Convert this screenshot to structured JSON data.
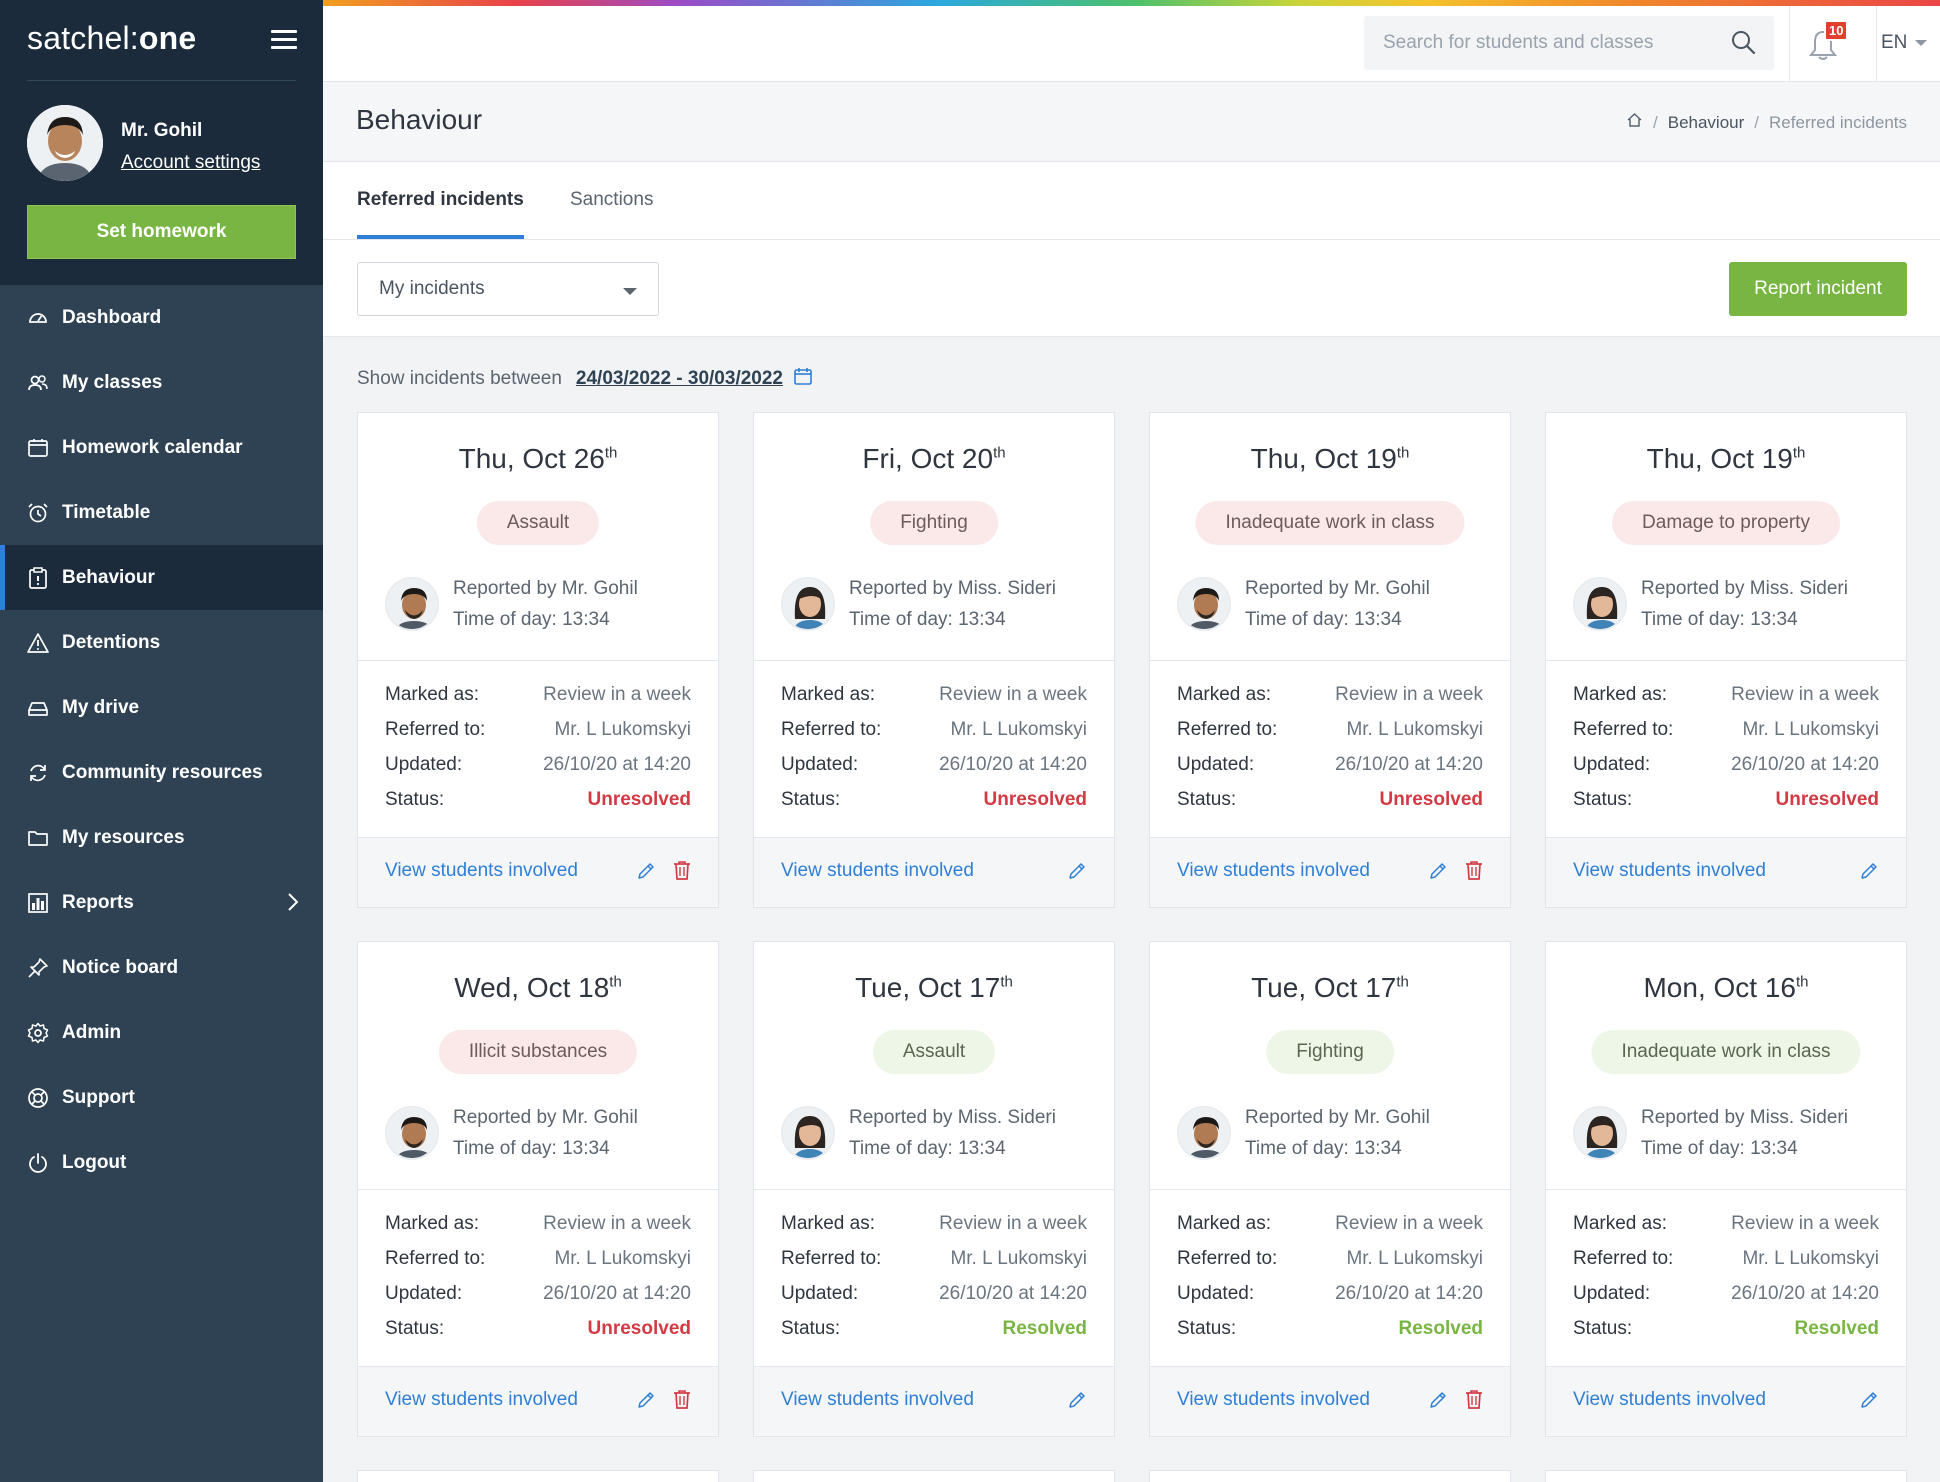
{
  "sidebar": {
    "logo_light": "satchel",
    "logo_sep": ":",
    "logo_bold": "one",
    "teacher_name": "Mr. Gohil",
    "account_settings": "Account settings",
    "set_homework": "Set homework",
    "nav": [
      {
        "label": "Dashboard",
        "icon": "dashboard-icon"
      },
      {
        "label": "My classes",
        "icon": "people-icon"
      },
      {
        "label": "Homework calendar",
        "icon": "calendar-icon"
      },
      {
        "label": "Timetable",
        "icon": "alarm-clock-icon"
      },
      {
        "label": "Behaviour",
        "icon": "clipboard-icon",
        "active": true
      },
      {
        "label": "Detentions",
        "icon": "warning-icon"
      },
      {
        "label": "My drive",
        "icon": "drive-icon"
      },
      {
        "label": "Community resources",
        "icon": "sync-icon"
      },
      {
        "label": "My resources",
        "icon": "folder-icon"
      },
      {
        "label": "Reports",
        "icon": "bar-chart-icon"
      },
      {
        "label": "Notice board",
        "icon": "pin-icon"
      },
      {
        "label": "Admin",
        "icon": "gear-icon"
      },
      {
        "label": "Support",
        "icon": "lifebuoy-icon"
      },
      {
        "label": "Logout",
        "icon": "power-icon"
      }
    ]
  },
  "topbar": {
    "search_placeholder": "Search for students and classes",
    "notification_count": "10",
    "language": "EN"
  },
  "page": {
    "title": "Behaviour",
    "breadcrumb": [
      "Behaviour",
      "Referred incidents"
    ]
  },
  "tabs": [
    "Referred incidents",
    "Sanctions"
  ],
  "filter": {
    "selected": "My incidents",
    "report_button": "Report incident",
    "range_label": "Show incidents between",
    "range_value": "24/03/2022 - 30/03/2022"
  },
  "labels": {
    "marked_as": "Marked as:",
    "referred_to": "Referred to:",
    "updated": "Updated:",
    "status": "Status:",
    "view_students": "View students involved"
  },
  "colors": {
    "accent_green": "#79b543",
    "accent_blue": "#2f7fd6",
    "unresolved_red": "#d33a44",
    "sidebar_dark": "#1b2b3c",
    "sidebar": "#2f4254"
  },
  "incidents": [
    {
      "date": "Thu, Oct 26",
      "suffix": "th",
      "type": "Assault",
      "tone": "red",
      "reporter": "Reported by Mr. Gohil",
      "time": "Time of day: 13:34",
      "avatar": "male",
      "marked": "Review in a week",
      "referred": "Mr. L Lukomskyi",
      "updated": "26/10/20 at 14:20",
      "status": "Unresolved",
      "deletable": true
    },
    {
      "date": "Fri, Oct 20",
      "suffix": "th",
      "type": "Fighting",
      "tone": "red",
      "reporter": "Reported by Miss. Sideri",
      "time": "Time of day: 13:34",
      "avatar": "female",
      "marked": "Review in a week",
      "referred": "Mr. L Lukomskyi",
      "updated": "26/10/20 at 14:20",
      "status": "Unresolved",
      "deletable": false
    },
    {
      "date": "Thu, Oct 19",
      "suffix": "th",
      "type": "Inadequate work in class",
      "tone": "red",
      "reporter": "Reported by Mr. Gohil",
      "time": "Time of day: 13:34",
      "avatar": "male",
      "marked": "Review in a week",
      "referred": "Mr. L Lukomskyi",
      "updated": "26/10/20 at 14:20",
      "status": "Unresolved",
      "deletable": true
    },
    {
      "date": "Thu, Oct 19",
      "suffix": "th",
      "type": "Damage to property",
      "tone": "red",
      "reporter": "Reported by Miss. Sideri",
      "time": "Time of day: 13:34",
      "avatar": "female",
      "marked": "Review in a week",
      "referred": "Mr. L Lukomskyi",
      "updated": "26/10/20 at 14:20",
      "status": "Unresolved",
      "deletable": false
    },
    {
      "date": "Wed, Oct 18",
      "suffix": "th",
      "type": "Illicit substances",
      "tone": "red",
      "reporter": "Reported by Mr. Gohil",
      "time": "Time of day: 13:34",
      "avatar": "male",
      "marked": "Review in a week",
      "referred": "Mr. L Lukomskyi",
      "updated": "26/10/20 at 14:20",
      "status": "Unresolved",
      "deletable": true
    },
    {
      "date": "Tue, Oct 17",
      "suffix": "th",
      "type": "Assault",
      "tone": "green",
      "reporter": "Reported by Miss. Sideri",
      "time": "Time of day: 13:34",
      "avatar": "female",
      "marked": "Review in a week",
      "referred": "Mr. L Lukomskyi",
      "updated": "26/10/20 at 14:20",
      "status": "Resolved",
      "deletable": false
    },
    {
      "date": "Tue, Oct 17",
      "suffix": "th",
      "type": "Fighting",
      "tone": "green",
      "reporter": "Reported by Mr. Gohil",
      "time": "Time of day: 13:34",
      "avatar": "male",
      "marked": "Review in a week",
      "referred": "Mr. L Lukomskyi",
      "updated": "26/10/20 at 14:20",
      "status": "Resolved",
      "deletable": true
    },
    {
      "date": "Mon, Oct 16",
      "suffix": "th",
      "type": "Inadequate work in class",
      "tone": "green",
      "reporter": "Reported by Miss. Sideri",
      "time": "Time of day: 13:34",
      "avatar": "female",
      "marked": "Review in a week",
      "referred": "Mr. L Lukomskyi",
      "updated": "26/10/20 at 14:20",
      "status": "Resolved",
      "deletable": false
    }
  ]
}
